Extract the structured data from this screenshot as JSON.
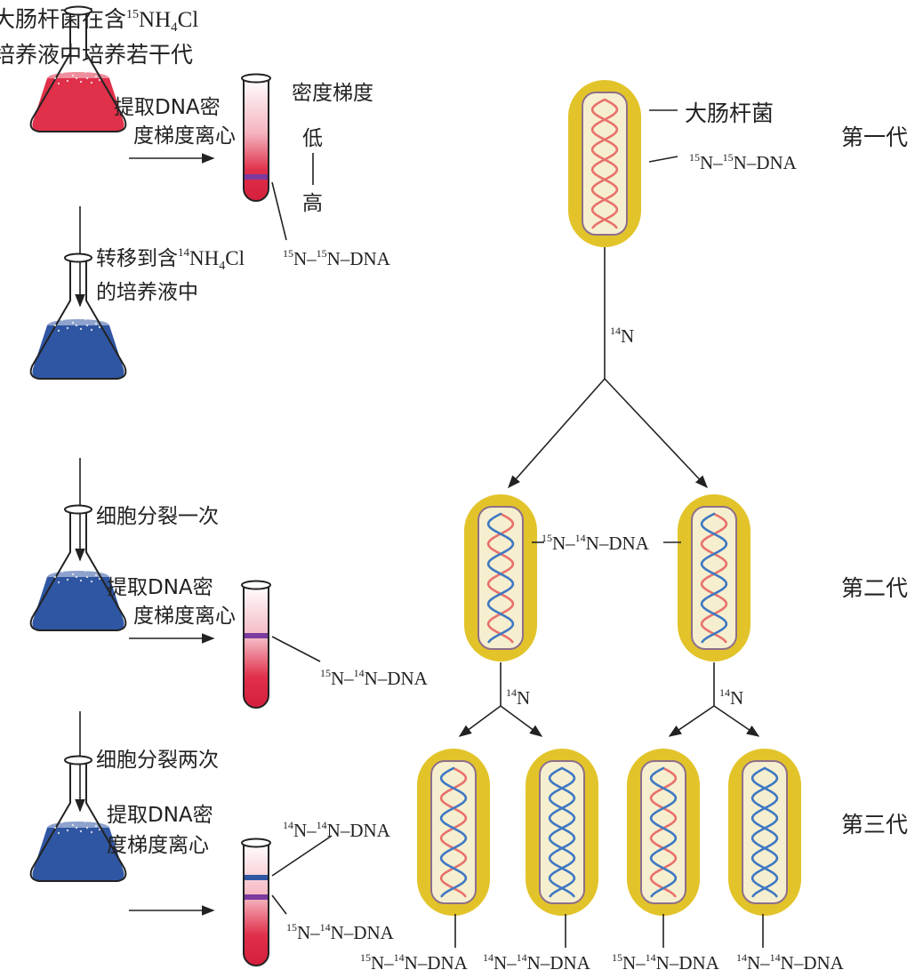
{
  "colors": {
    "medium_15N": "#e0304a",
    "medium_14N": "#2f56a3",
    "band": "#7b3b9e",
    "capsule": "#e2c42a",
    "cell_inner": "#f6efcf",
    "strand_old": "#e8716c",
    "strand_new": "#3f78c2"
  },
  "left": {
    "intro_line1": "大肠杆菌在含",
    "intro_iso": "15",
    "intro_formula": "NH",
    "intro_sub": "4",
    "intro_tail": "Cl",
    "intro_line2": "培养液中培养若干代",
    "extract_1": "提取DNA密",
    "extract_2": "度梯度离心",
    "gradient_title": "密度梯度",
    "gradient_low": "低",
    "gradient_high": "高",
    "transfer_1": "转移到含",
    "transfer_iso": "14",
    "transfer_formula": "NH",
    "transfer_sub": "4",
    "transfer_tail": "Cl",
    "transfer_2": "的培养液中",
    "divide_once": "细胞分裂一次",
    "divide_twice": "细胞分裂两次"
  },
  "right": {
    "ecoli_label": "大肠杆菌",
    "gen1": "第一代",
    "gen2": "第二代",
    "gen3": "第三代",
    "iso14": "14",
    "iso15": "15",
    "N": "N",
    "dna_suffix": "–DNA",
    "dash": "–"
  }
}
